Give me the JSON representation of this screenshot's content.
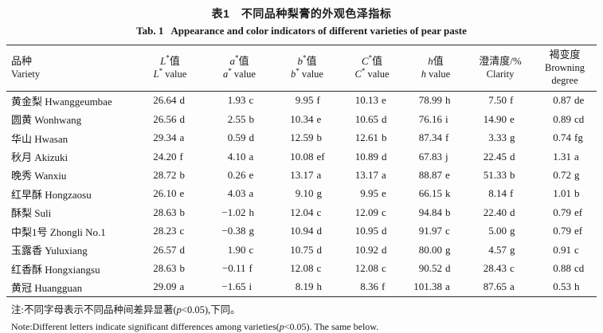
{
  "page": {
    "background": "#fdfdfd",
    "text_color": "#1b1b1b",
    "rule_color": "#2b2b2b"
  },
  "title": {
    "zh": "表1　不同品种梨膏的外观色泽指标",
    "en": "Tab. 1  Appearance and color indicators of different varieties of pear paste"
  },
  "table": {
    "columns": [
      {
        "zh": "品种",
        "en": "Variety"
      },
      {
        "zh": "L*值",
        "en": "L* value"
      },
      {
        "zh": "a*值",
        "en": "a* value"
      },
      {
        "zh": "b*值",
        "en": "b* value"
      },
      {
        "zh": "C*值",
        "en": "C* value"
      },
      {
        "zh": "h值",
        "en": "h value"
      },
      {
        "zh": "澄清度/%",
        "en": "Clarity"
      },
      {
        "zh": "褐变度",
        "en": "Browning degree"
      }
    ],
    "rows": [
      {
        "variety": "黄金梨 Hwanggeumbae",
        "values": [
          "26.64 d",
          "1.93 c",
          "9.95 f",
          "10.13 e",
          "78.99 h",
          "7.50 f",
          "0.87 de"
        ]
      },
      {
        "variety": "圆黄 Wonhwang",
        "values": [
          "26.56 d",
          "2.55 b",
          "10.34 e",
          "10.65 d",
          "76.16 i",
          "14.90 e",
          "0.89 cd"
        ]
      },
      {
        "variety": "华山 Hwasan",
        "values": [
          "29.34 a",
          "0.59 d",
          "12.59 b",
          "12.61 b",
          "87.34 f",
          "3.33 g",
          "0.74 fg"
        ]
      },
      {
        "variety": "秋月 Akizuki",
        "values": [
          "24.20 f",
          "4.10 a",
          "10.08 ef",
          "10.89 d",
          "67.83 j",
          "22.45 d",
          "1.31 a"
        ]
      },
      {
        "variety": "晚秀 Wanxiu",
        "values": [
          "28.72 b",
          "0.26 e",
          "13.17 a",
          "13.17 a",
          "88.87 e",
          "51.33 b",
          "0.72 g"
        ]
      },
      {
        "variety": "红早酥 Hongzaosu",
        "values": [
          "26.10 e",
          "4.03 a",
          "9.10 g",
          "9.95 e",
          "66.15 k",
          "8.14 f",
          "1.01 b"
        ]
      },
      {
        "variety": "酥梨 Suli",
        "values": [
          "28.63 b",
          "−1.02 h",
          "12.04 c",
          "12.09 c",
          "94.84 b",
          "22.40 d",
          "0.79 ef"
        ]
      },
      {
        "variety": "中梨1号 Zhongli No.1",
        "values": [
          "28.23 c",
          "−0.38 g",
          "10.94 d",
          "10.95 d",
          "91.97 c",
          "5.00 g",
          "0.79 ef"
        ]
      },
      {
        "variety": "玉露香 Yuluxiang",
        "values": [
          "26.57 d",
          "1.90 c",
          "10.75 d",
          "10.92 d",
          "80.00 g",
          "4.57 g",
          "0.91 c"
        ]
      },
      {
        "variety": "红香酥 Hongxiangsu",
        "values": [
          "28.63 b",
          "−0.11 f",
          "12.08 c",
          "12.08 c",
          "90.52 d",
          "28.43 c",
          "0.88 cd"
        ]
      },
      {
        "variety": "黄冠 Huangguan",
        "values": [
          "29.09 a",
          "−1.65 i",
          "8.19 h",
          "8.36 f",
          "101.38 a",
          "87.65 a",
          "0.53 h"
        ]
      }
    ]
  },
  "notes": {
    "zh": "注:不同字母表示不同品种间差异显著(p<0.05),下同。",
    "en": "Note:Different letters indicate significant differences among varieties(p<0.05). The same below."
  }
}
